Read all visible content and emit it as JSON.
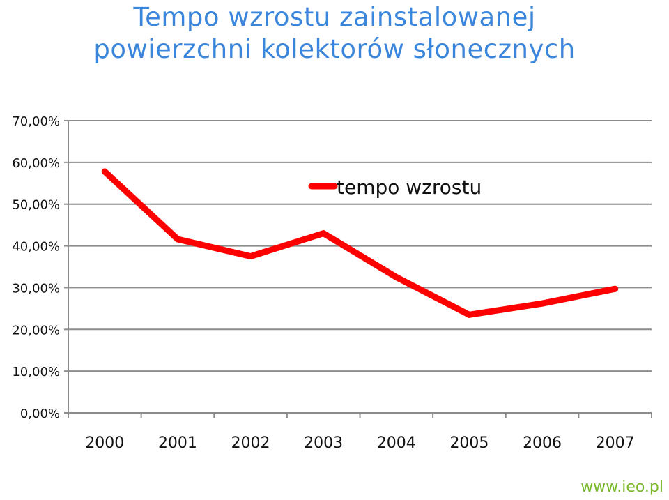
{
  "title": {
    "line1": "Tempo wzrostu zainstalowanej",
    "line2": "powierzchni kolektorów słonecznych"
  },
  "source": "www.ieo.pl",
  "colors": {
    "title": "#3a86dc",
    "line": "#ff0000",
    "grid": "#8c8c8c",
    "source": "#7ab82a"
  },
  "chart_data": {
    "type": "line",
    "title": "Tempo wzrostu zainstalowanej powierzchni kolektorów słonecznych",
    "categories": [
      "2000",
      "2001",
      "2002",
      "2003",
      "2004",
      "2005",
      "2006",
      "2007"
    ],
    "series": [
      {
        "name": "tempo wzrostu",
        "values": [
          57.8,
          41.6,
          37.5,
          43.0,
          32.5,
          23.5,
          26.2,
          29.7
        ]
      }
    ],
    "ylim": [
      0,
      70
    ],
    "yticks": [
      "0,00%",
      "10,00%",
      "20,00%",
      "30,00%",
      "40,00%",
      "50,00%",
      "60,00%",
      "70,00%"
    ],
    "grid": true,
    "legend_position": "top-right"
  }
}
